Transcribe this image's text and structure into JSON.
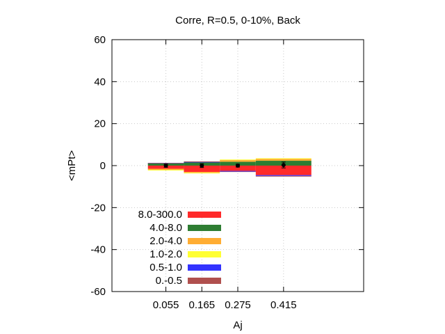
{
  "chart_data": {
    "type": "bar",
    "title": "Corre, R=0.5, 0-10%, Back",
    "xlabel": "Aj",
    "ylabel": "<mPt>",
    "ylim": [
      -60,
      60
    ],
    "yticks": [
      -60,
      -40,
      -20,
      0,
      20,
      40,
      60
    ],
    "grid": true,
    "legend_placement": "bottom-left",
    "categories": [
      "0.055",
      "0.165",
      "0.275",
      "0.415"
    ],
    "bins": [
      [
        0.0,
        0.11
      ],
      [
        0.11,
        0.22
      ],
      [
        0.22,
        0.33
      ],
      [
        0.33,
        0.5
      ]
    ],
    "x_range": [
      -0.11,
      0.66
    ],
    "points": [
      {
        "x": 0.055,
        "y": 0.0,
        "err": 0.8
      },
      {
        "x": 0.165,
        "y": 0.0,
        "err": 0.9
      },
      {
        "x": 0.275,
        "y": 0.0,
        "err": 0.7
      },
      {
        "x": 0.415,
        "y": 0.3,
        "err": 1.4
      }
    ],
    "series": [
      {
        "name": "8.0-300.0",
        "color": "#ff2a2a",
        "values": [
          [
            -1.5,
            0.0
          ],
          [
            -3.0,
            0.0
          ],
          [
            -2.5,
            0.0
          ],
          [
            -4.5,
            0.0
          ]
        ]
      },
      {
        "name": "4.0-8.0",
        "color": "#2e7d32",
        "values": [
          [
            0.0,
            1.0
          ],
          [
            0.0,
            1.5
          ],
          [
            0.0,
            1.8
          ],
          [
            0.0,
            2.3
          ]
        ]
      },
      {
        "name": "2.0-4.0",
        "color": "#ffad33",
        "values": [
          [
            -2.0,
            -1.5
          ],
          [
            -3.4,
            -3.0
          ],
          [
            1.8,
            2.6
          ],
          [
            2.3,
            3.2
          ]
        ]
      },
      {
        "name": "1.0-2.0",
        "color": "#ffff33",
        "values": [
          [
            -2.2,
            -2.0
          ],
          [
            -3.6,
            -3.4
          ],
          [
            2.6,
            2.9
          ],
          [
            3.2,
            3.5
          ]
        ]
      },
      {
        "name": "0.5-1.0",
        "color": "#3333ff",
        "values": [
          [
            1.0,
            1.1
          ],
          [
            1.5,
            1.7
          ],
          [
            -2.7,
            -2.5
          ],
          [
            -4.9,
            -4.5
          ]
        ]
      },
      {
        "name": "0.-0.5",
        "color": "#b0504e",
        "values": [
          [
            1.1,
            1.3
          ],
          [
            1.7,
            2.0
          ],
          [
            -2.9,
            -2.7
          ],
          [
            -5.2,
            -4.9
          ]
        ]
      }
    ]
  }
}
